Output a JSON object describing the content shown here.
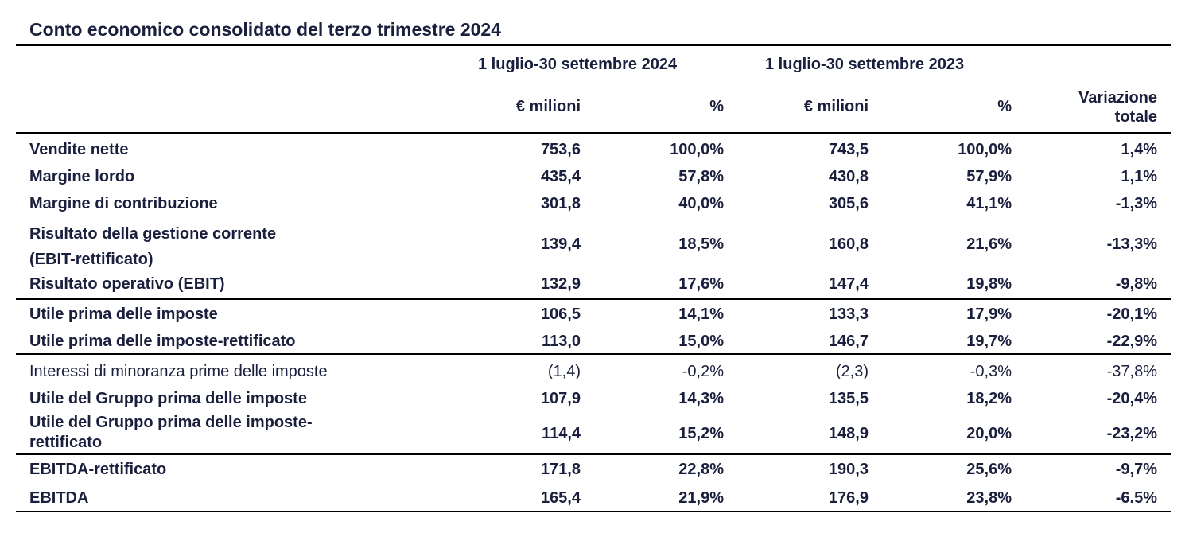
{
  "title": "Conto economico consolidato del terzo trimestre 2024",
  "header": {
    "period_2024": "1 luglio-30 settembre 2024",
    "period_2023": "1 luglio-30 settembre 2023",
    "col_eur_2024": "€ milioni",
    "col_pct_2024": "%",
    "col_eur_2023": "€ milioni",
    "col_pct_2023": "%",
    "col_var_line1": "Variazione",
    "col_var_line2": "totale"
  },
  "rows": [
    {
      "label": "Vendite nette",
      "label2": "",
      "eur2024": "753,6",
      "pct2024": "100,0%",
      "eur2023": "743,5",
      "pct2023": "100,0%",
      "var": "1,4%"
    },
    {
      "label": "Margine lordo",
      "label2": "",
      "eur2024": "435,4",
      "pct2024": "57,8%",
      "eur2023": "430,8",
      "pct2023": "57,9%",
      "var": "1,1%"
    },
    {
      "label": "Margine di contribuzione",
      "label2": "",
      "eur2024": "301,8",
      "pct2024": "40,0%",
      "eur2023": "305,6",
      "pct2023": "41,1%",
      "var": "-1,3%"
    },
    {
      "label": "Risultato della gestione corrente",
      "label2": "(EBIT-rettificato)",
      "eur2024": "139,4",
      "pct2024": "18,5%",
      "eur2023": "160,8",
      "pct2023": "21,6%",
      "var": "-13,3%"
    },
    {
      "label": "Risultato operativo (EBIT)",
      "label2": "",
      "eur2024": "132,9",
      "pct2024": "17,6%",
      "eur2023": "147,4",
      "pct2023": "19,8%",
      "var": "-9,8%"
    },
    {
      "label": "Utile prima delle imposte",
      "label2": "",
      "eur2024": "106,5",
      "pct2024": "14,1%",
      "eur2023": "133,3",
      "pct2023": "17,9%",
      "var": "-20,1%"
    },
    {
      "label": "Utile prima delle imposte-rettificato",
      "label2": "",
      "eur2024": "113,0",
      "pct2024": "15,0%",
      "eur2023": "146,7",
      "pct2023": "19,7%",
      "var": "-22,9%"
    },
    {
      "label": "Interessi di minoranza prime delle imposte",
      "label2": "",
      "eur2024": "(1,4)",
      "pct2024": "-0,2%",
      "eur2023": "(2,3)",
      "pct2023": "-0,3%",
      "var": "-37,8%"
    },
    {
      "label": "Utile del Gruppo prima delle imposte",
      "label2": "",
      "eur2024": "107,9",
      "pct2024": "14,3%",
      "eur2023": "135,5",
      "pct2023": "18,2%",
      "var": "-20,4%"
    },
    {
      "label": "Utile del Gruppo prima delle imposte-",
      "label2": "rettificato",
      "eur2024": "114,4",
      "pct2024": "15,2%",
      "eur2023": "148,9",
      "pct2023": "20,0%",
      "var": "-23,2%"
    },
    {
      "label": "EBITDA-rettificato",
      "label2": "",
      "eur2024": "171,8",
      "pct2024": "22,8%",
      "eur2023": "190,3",
      "pct2023": "25,6%",
      "var": "-9,7%"
    },
    {
      "label": "EBITDA",
      "label2": "",
      "eur2024": "165,4",
      "pct2024": "21,9%",
      "eur2023": "176,9",
      "pct2023": "23,8%",
      "var": "-6.5%"
    }
  ]
}
